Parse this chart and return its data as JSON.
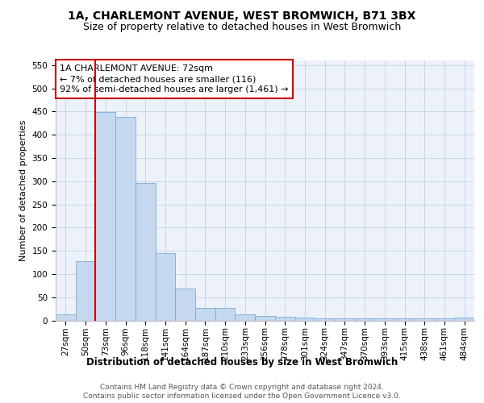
{
  "title": "1A, CHARLEMONT AVENUE, WEST BROMWICH, B71 3BX",
  "subtitle": "Size of property relative to detached houses in West Bromwich",
  "xlabel": "Distribution of detached houses by size in West Bromwich",
  "ylabel": "Number of detached properties",
  "bar_values": [
    13,
    127,
    449,
    439,
    296,
    145,
    69,
    27,
    27,
    13,
    9,
    7,
    6,
    5,
    5,
    5,
    5,
    5,
    5,
    5,
    6
  ],
  "bar_labels": [
    "27sqm",
    "50sqm",
    "73sqm",
    "96sqm",
    "118sqm",
    "141sqm",
    "164sqm",
    "187sqm",
    "210sqm",
    "233sqm",
    "256sqm",
    "278sqm",
    "301sqm",
    "324sqm",
    "347sqm",
    "370sqm",
    "393sqm",
    "415sqm",
    "438sqm",
    "461sqm",
    "484sqm"
  ],
  "bar_color": "#c5d8f0",
  "bar_edgecolor": "#7aaad4",
  "ylim": [
    0,
    560
  ],
  "yticks": [
    0,
    50,
    100,
    150,
    200,
    250,
    300,
    350,
    400,
    450,
    500,
    550
  ],
  "vline_x": 1.5,
  "vline_color": "#cc0000",
  "annotation_text": "1A CHARLEMONT AVENUE: 72sqm\n← 7% of detached houses are smaller (116)\n92% of semi-detached houses are larger (1,461) →",
  "annotation_box_color": "#cc0000",
  "bg_color": "#edf2fa",
  "footer_line1": "Contains HM Land Registry data © Crown copyright and database right 2024.",
  "footer_line2": "Contains public sector information licensed under the Open Government Licence v3.0.",
  "title_fontsize": 10,
  "subtitle_fontsize": 9,
  "xlabel_fontsize": 8.5,
  "ylabel_fontsize": 8,
  "annotation_fontsize": 8,
  "tick_fontsize": 7.5,
  "footer_fontsize": 6.5
}
